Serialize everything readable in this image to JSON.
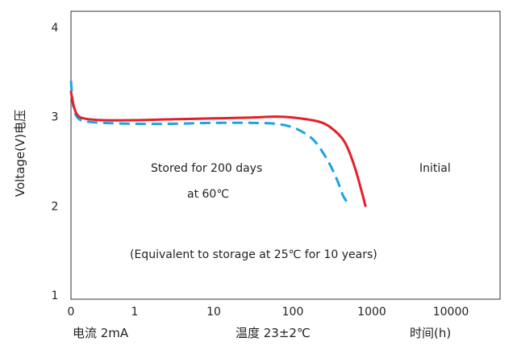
{
  "chart_data": {
    "type": "line",
    "title": "",
    "ylabel": "Voltage(V)电压",
    "xlabel": "",
    "x_scale": "log",
    "x_ticks": [
      {
        "value": 0,
        "label": "0"
      },
      {
        "value": 1,
        "label": "1"
      },
      {
        "value": 10,
        "label": "10"
      },
      {
        "value": 100,
        "label": "100"
      },
      {
        "value": 1000,
        "label": "1000"
      },
      {
        "value": 10000,
        "label": "10000"
      }
    ],
    "y_ticks": [
      {
        "value": 1,
        "label": "1"
      },
      {
        "value": 2,
        "label": "2"
      },
      {
        "value": 3,
        "label": "3"
      },
      {
        "value": 4,
        "label": "4"
      }
    ],
    "ylim": [
      1,
      4
    ],
    "xlim": [
      0,
      10000
    ],
    "grid": false,
    "series": [
      {
        "name": "Initial",
        "color": "#e3202a",
        "style": "solid",
        "points": [
          [
            0,
            3.28
          ],
          [
            0.02,
            3.2
          ],
          [
            0.05,
            3.1
          ],
          [
            0.1,
            3.02
          ],
          [
            0.2,
            2.98
          ],
          [
            0.5,
            2.96
          ],
          [
            1,
            2.96
          ],
          [
            3,
            2.97
          ],
          [
            10,
            2.98
          ],
          [
            30,
            2.99
          ],
          [
            60,
            3.0
          ],
          [
            100,
            2.99
          ],
          [
            200,
            2.95
          ],
          [
            300,
            2.88
          ],
          [
            450,
            2.72
          ],
          [
            600,
            2.45
          ],
          [
            750,
            2.15
          ],
          [
            830,
            2.0
          ]
        ]
      },
      {
        "name": "Stored for 200 days at 60℃",
        "color": "#1aa3e8",
        "style": "dashed",
        "points": [
          [
            0,
            3.4
          ],
          [
            0.01,
            3.3
          ],
          [
            0.03,
            3.15
          ],
          [
            0.06,
            3.05
          ],
          [
            0.1,
            2.99
          ],
          [
            0.2,
            2.95
          ],
          [
            0.5,
            2.93
          ],
          [
            1,
            2.92
          ],
          [
            3,
            2.92
          ],
          [
            10,
            2.93
          ],
          [
            30,
            2.93
          ],
          [
            60,
            2.92
          ],
          [
            100,
            2.88
          ],
          [
            150,
            2.8
          ],
          [
            200,
            2.7
          ],
          [
            280,
            2.5
          ],
          [
            360,
            2.3
          ],
          [
            430,
            2.12
          ],
          [
            480,
            2.05
          ]
        ]
      }
    ],
    "annotations": {
      "initial": "Initial",
      "stored_line1": "Stored for 200 days",
      "stored_line2": "at 60℃",
      "equivalent": "(Equivalent to storage at 25℃ for 10 years)"
    }
  },
  "footer": {
    "current": "电流  2mA",
    "temperature": "温度  23±2℃",
    "time": "时间(h)"
  }
}
